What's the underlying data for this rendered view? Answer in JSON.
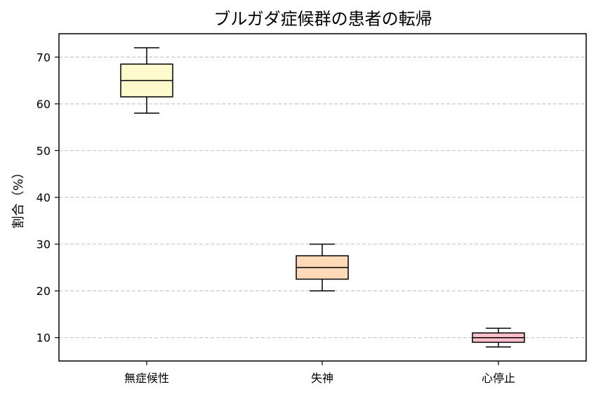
{
  "chart_data": {
    "type": "box",
    "title": "ブルガダ症候群の患者の転帰",
    "xlabel": "",
    "ylabel": "割合（%）",
    "ylim": [
      5,
      75
    ],
    "yticks": [
      10,
      20,
      30,
      40,
      50,
      60,
      70
    ],
    "grid": "y, dashed",
    "categories": [
      "無症候性",
      "失神",
      "心停止"
    ],
    "boxes": [
      {
        "category": "無症候性",
        "min": 58,
        "q1": 61.5,
        "median": 65,
        "q3": 68.5,
        "max": 72,
        "color": "#fffacd"
      },
      {
        "category": "失神",
        "min": 20,
        "q1": 22.5,
        "median": 25,
        "q3": 27.5,
        "max": 30,
        "color": "#ffdab9"
      },
      {
        "category": "心停止",
        "min": 8,
        "q1": 9,
        "median": 10,
        "q3": 11,
        "max": 12,
        "color": "#ffc0cb"
      }
    ]
  }
}
